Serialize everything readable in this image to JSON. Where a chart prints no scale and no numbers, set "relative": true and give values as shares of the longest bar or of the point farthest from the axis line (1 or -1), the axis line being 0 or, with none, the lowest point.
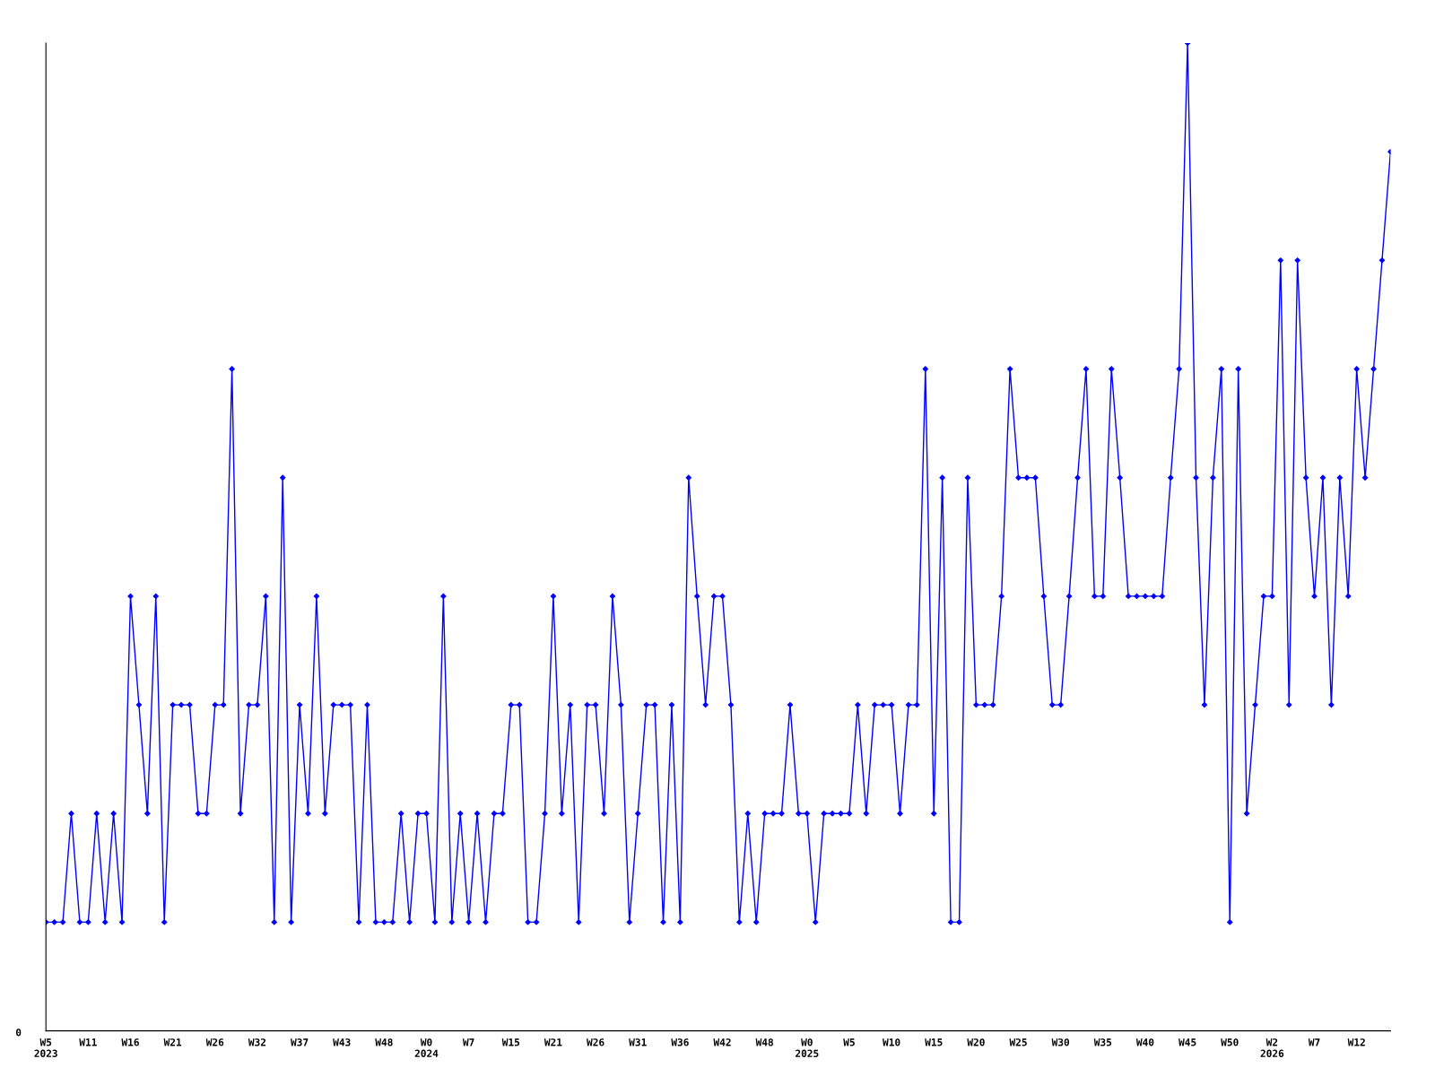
{
  "chart_data": {
    "type": "line",
    "relative": true,
    "marker": "diamond",
    "line_style": "solid",
    "grid": false,
    "legend": false,
    "annotations": [
      "0"
    ],
    "categories": [
      "W5\n2023",
      null,
      null,
      null,
      null,
      "W11",
      null,
      null,
      null,
      null,
      "W16",
      null,
      null,
      null,
      null,
      "W21",
      null,
      null,
      null,
      null,
      "W26",
      null,
      null,
      null,
      null,
      "W32",
      null,
      null,
      null,
      null,
      "W37",
      null,
      null,
      null,
      null,
      "W43",
      null,
      null,
      null,
      null,
      "W48",
      null,
      null,
      null,
      null,
      "W0\n2024",
      null,
      null,
      null,
      null,
      "W7",
      null,
      null,
      null,
      null,
      "W15",
      null,
      null,
      null,
      null,
      "W21",
      null,
      null,
      null,
      null,
      "W26",
      null,
      null,
      null,
      null,
      "W31",
      null,
      null,
      null,
      null,
      "W36",
      null,
      null,
      null,
      null,
      "W42",
      null,
      null,
      null,
      null,
      "W48",
      null,
      null,
      null,
      null,
      "W0\n2025",
      null,
      null,
      null,
      null,
      "W5",
      null,
      null,
      null,
      null,
      "W10",
      null,
      null,
      null,
      null,
      "W15",
      null,
      null,
      null,
      null,
      "W20",
      null,
      null,
      null,
      null,
      "W25",
      null,
      null,
      null,
      null,
      "W30",
      null,
      null,
      null,
      null,
      "W35",
      null,
      null,
      null,
      null,
      "W40",
      null,
      null,
      null,
      null,
      "W45",
      null,
      null,
      null,
      null,
      "W50",
      null,
      null,
      null,
      null,
      "W2\n2026",
      null,
      null,
      null,
      null,
      "W7",
      null,
      null,
      null,
      null,
      "W12",
      null,
      null,
      null,
      null
    ],
    "series": [
      {
        "color": "#0000ff",
        "values": [
          0.11,
          0.11,
          0.11,
          0.22,
          0.11,
          0.11,
          0.22,
          0.11,
          0.22,
          0.11,
          0.44,
          0.33,
          0.22,
          0.44,
          0.11,
          0.33,
          0.33,
          0.33,
          0.22,
          0.22,
          0.33,
          0.33,
          0.67,
          0.22,
          0.33,
          0.33,
          0.44,
          0.11,
          0.56,
          0.11,
          0.33,
          0.22,
          0.44,
          0.22,
          0.33,
          0.33,
          0.33,
          0.11,
          0.33,
          0.11,
          0.11,
          0.11,
          0.22,
          0.11,
          0.22,
          0.22,
          0.11,
          0.44,
          0.11,
          0.22,
          0.11,
          0.22,
          0.11,
          0.22,
          0.22,
          0.33,
          0.33,
          0.11,
          0.11,
          0.22,
          0.44,
          0.22,
          0.33,
          0.11,
          0.33,
          0.33,
          0.22,
          0.44,
          0.33,
          0.11,
          0.22,
          0.33,
          0.33,
          0.11,
          0.33,
          0.11,
          0.56,
          0.44,
          0.33,
          0.44,
          0.44,
          0.33,
          0.11,
          0.22,
          0.11,
          0.22,
          0.22,
          0.22,
          0.33,
          0.22,
          0.22,
          0.11,
          0.22,
          0.22,
          0.22,
          0.22,
          0.33,
          0.22,
          0.33,
          0.33,
          0.33,
          0.22,
          0.33,
          0.33,
          0.67,
          0.22,
          0.56,
          0.11,
          0.11,
          0.56,
          0.33,
          0.33,
          0.33,
          0.44,
          0.67,
          0.56,
          0.56,
          0.56,
          0.44,
          0.33,
          0.33,
          0.44,
          0.56,
          0.67,
          0.44,
          0.44,
          0.67,
          0.56,
          0.44,
          0.44,
          0.44,
          0.44,
          0.44,
          0.56,
          0.67,
          1,
          0.56,
          0.33,
          0.56,
          0.67,
          0.11,
          0.67,
          0.22,
          0.33,
          0.44,
          0.44,
          0.78,
          0.33,
          0.78,
          0.56,
          0.44,
          0.56,
          0.33,
          0.56,
          0.44,
          0.67,
          0.56,
          0.67,
          0.78,
          0.89
        ]
      }
    ]
  }
}
